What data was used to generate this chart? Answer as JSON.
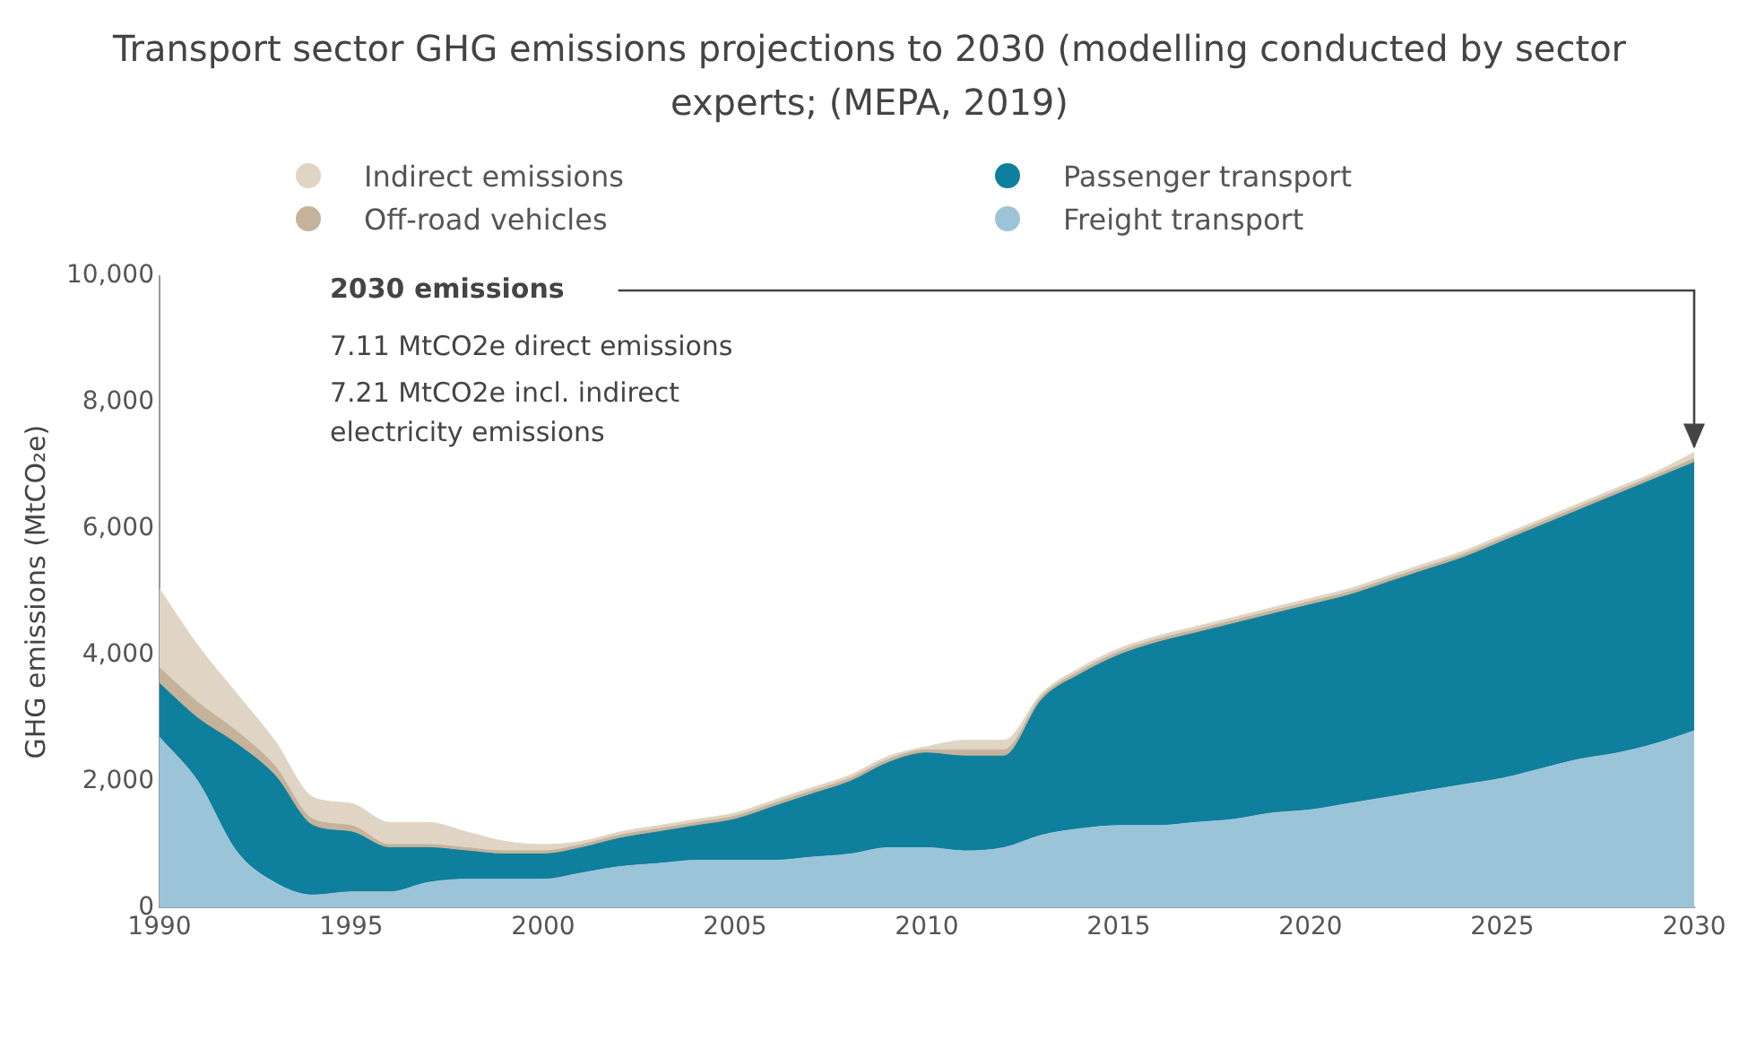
{
  "chart_data": {
    "type": "area",
    "stacked": true,
    "title": "Transport sector GHG emissions projections to 2030 (modelling conducted by sector experts; (MEPA, 2019)",
    "ylabel": "GHG emissions (MtCO₂e)",
    "x": [
      1990,
      1991,
      1992,
      1993,
      1994,
      1995,
      1996,
      1997,
      1998,
      1999,
      2000,
      2001,
      2002,
      2003,
      2004,
      2005,
      2006,
      2007,
      2008,
      2009,
      2010,
      2011,
      2012,
      2013,
      2014,
      2015,
      2016,
      2017,
      2018,
      2019,
      2020,
      2021,
      2022,
      2023,
      2024,
      2025,
      2026,
      2027,
      2028,
      2029,
      2030
    ],
    "series": [
      {
        "name": "Freight transport",
        "color": "#9bc4d8",
        "values": [
          2700,
          2000,
          900,
          400,
          200,
          250,
          250,
          400,
          450,
          450,
          450,
          550,
          650,
          700,
          750,
          750,
          750,
          800,
          850,
          950,
          950,
          900,
          950,
          1150,
          1250,
          1300,
          1300,
          1350,
          1400,
          1500,
          1550,
          1650,
          1750,
          1850,
          1950,
          2050,
          2200,
          2350,
          2450,
          2600,
          2800
        ]
      },
      {
        "name": "Passenger transport",
        "color": "#0e7f9c",
        "values": [
          850,
          1000,
          1700,
          1700,
          1100,
          950,
          700,
          550,
          450,
          400,
          400,
          400,
          450,
          500,
          550,
          650,
          850,
          1000,
          1150,
          1350,
          1500,
          1500,
          1450,
          2150,
          2450,
          2700,
          2900,
          3000,
          3100,
          3150,
          3250,
          3300,
          3400,
          3500,
          3600,
          3750,
          3850,
          3950,
          4100,
          4200,
          4250
        ]
      },
      {
        "name": "Off-road vehicles",
        "color": "#c4b29a",
        "values": [
          250,
          250,
          200,
          150,
          100,
          100,
          50,
          50,
          50,
          50,
          50,
          50,
          50,
          50,
          50,
          50,
          50,
          50,
          50,
          50,
          50,
          100,
          100,
          50,
          50,
          50,
          50,
          50,
          50,
          50,
          50,
          50,
          50,
          50,
          50,
          50,
          50,
          50,
          50,
          50,
          60
        ]
      },
      {
        "name": "Indirect emissions",
        "color": "#e0d5c5",
        "values": [
          1250,
          900,
          600,
          400,
          350,
          350,
          350,
          350,
          250,
          150,
          100,
          50,
          50,
          50,
          50,
          50,
          50,
          50,
          50,
          50,
          50,
          150,
          150,
          50,
          50,
          50,
          50,
          50,
          50,
          50,
          50,
          50,
          50,
          50,
          50,
          50,
          50,
          50,
          50,
          50,
          100
        ]
      }
    ],
    "xlim": [
      1990,
      2030
    ],
    "xticks": [
      1990,
      1995,
      2000,
      2005,
      2010,
      2015,
      2020,
      2025,
      2030
    ],
    "ylim": [
      0,
      10000
    ],
    "yticks": [
      0,
      {
        "value": 2000,
        "label": "2,000"
      },
      {
        "value": 4000,
        "label": "4,000"
      },
      {
        "value": 6000,
        "label": "6,000"
      },
      {
        "value": 8000,
        "label": "8,000"
      },
      {
        "value": 10000,
        "label": "10,000"
      }
    ],
    "legend": "top",
    "annotations": [
      "2030 emissions",
      "7.11 MtCO2e direct emissions",
      "7.21 MtCO2e incl. indirect electricity emissions"
    ]
  }
}
